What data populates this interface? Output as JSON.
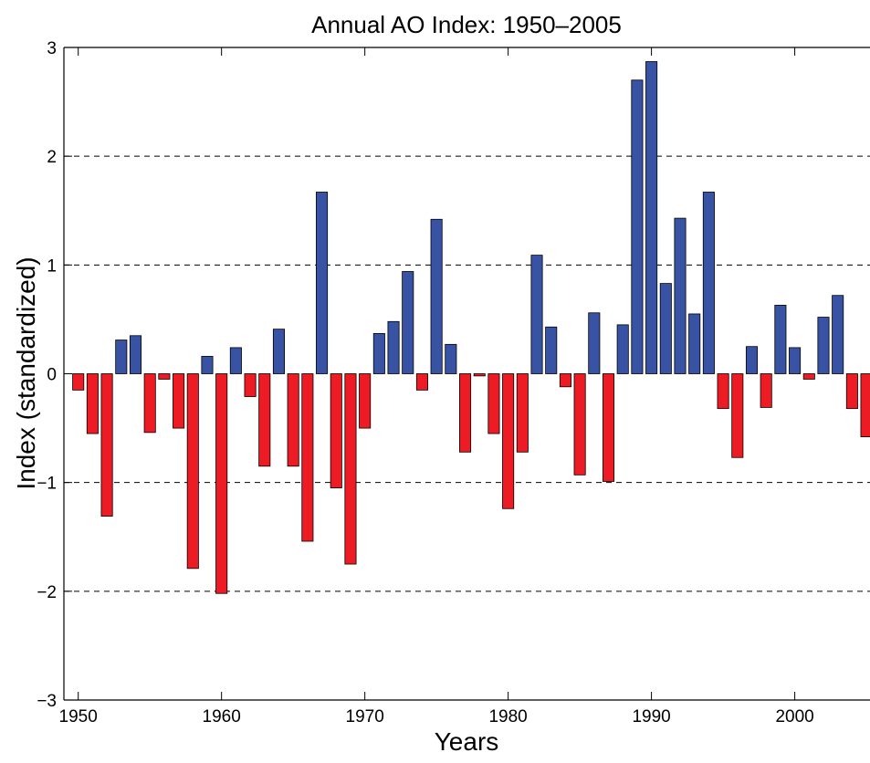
{
  "chart_data": {
    "type": "bar",
    "title": "Annual AO Index: 1950–2005",
    "x_label": "Years",
    "y_label": "Index (standardized)",
    "x": [
      1950,
      1951,
      1952,
      1953,
      1954,
      1955,
      1956,
      1957,
      1958,
      1959,
      1960,
      1961,
      1962,
      1963,
      1964,
      1965,
      1966,
      1967,
      1968,
      1969,
      1970,
      1971,
      1972,
      1973,
      1974,
      1975,
      1976,
      1977,
      1978,
      1979,
      1980,
      1981,
      1982,
      1983,
      1984,
      1985,
      1986,
      1987,
      1988,
      1989,
      1990,
      1991,
      1992,
      1993,
      1994,
      1995,
      1996,
      1997,
      1998,
      1999,
      2000,
      2001,
      2002,
      2003,
      2004,
      2005
    ],
    "values": [
      -0.15,
      -0.55,
      -1.31,
      0.31,
      0.35,
      -0.54,
      -0.05,
      -0.5,
      -1.79,
      0.16,
      -2.02,
      0.24,
      -0.21,
      -0.85,
      0.41,
      -0.85,
      -1.54,
      1.67,
      -1.05,
      -1.75,
      -0.5,
      0.37,
      0.48,
      0.94,
      -0.15,
      1.42,
      0.27,
      -0.72,
      -0.02,
      -0.55,
      -1.24,
      -0.72,
      1.09,
      0.43,
      -0.12,
      -0.93,
      0.56,
      -0.99,
      0.45,
      2.7,
      2.87,
      0.83,
      1.43,
      0.55,
      1.67,
      -0.32,
      -0.77,
      0.25,
      -0.31,
      0.63,
      0.24,
      -0.05,
      0.52,
      0.72,
      -0.32,
      -0.58
    ],
    "positive_color": "#3953a4",
    "negative_color": "#ed1c24",
    "xlim": [
      1949,
      2005.25
    ],
    "xticks": [
      1950,
      1960,
      1970,
      1980,
      1990,
      2000
    ],
    "ylim": [
      -3,
      3
    ],
    "yticks": [
      {
        "value": -3,
        "label": "−3"
      },
      {
        "value": -2,
        "label": "−2"
      },
      {
        "value": -1,
        "label": "−1"
      },
      0,
      1,
      2,
      3
    ],
    "grid": true
  }
}
